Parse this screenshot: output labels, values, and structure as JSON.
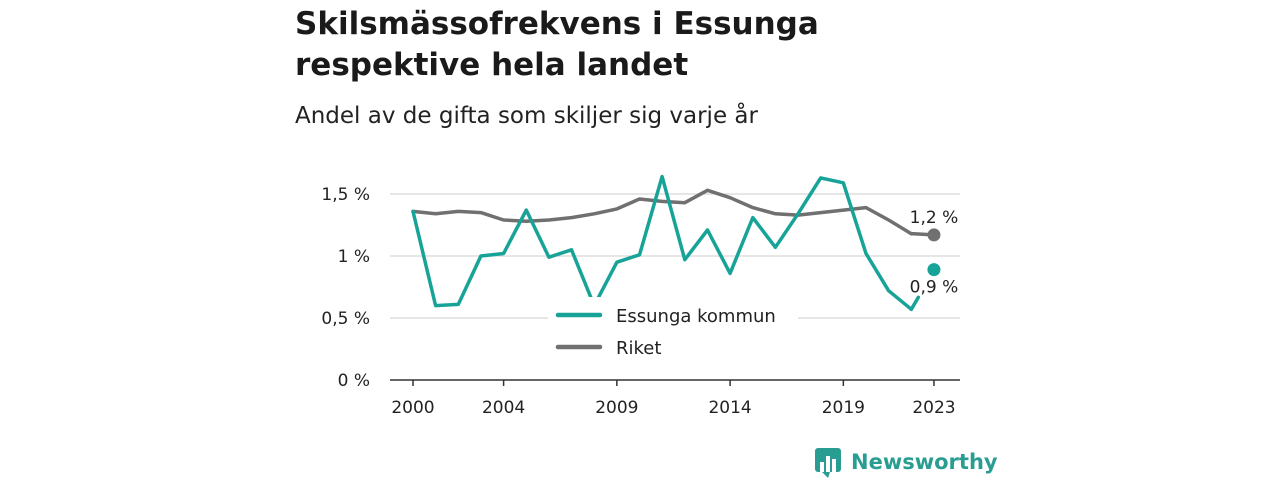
{
  "title": "Skilsmässofrekvens i Essunga respektive hela landet",
  "subtitle": "Andel av de gifta som skiljer sig varje år",
  "brand": "Newsworthy",
  "colors": {
    "essunga": "#17a398",
    "riket": "#707070",
    "grid": "#d6d6d6",
    "axis": "#333333"
  },
  "chart_data": {
    "type": "line",
    "ylim": [
      0,
      1.5
    ],
    "yticks": [
      {
        "value": 0,
        "label": "0 %"
      },
      {
        "value": 0.5,
        "label": "0,5 %"
      },
      {
        "value": 1,
        "label": "1 %"
      },
      {
        "value": 1.5,
        "label": "1,5 %"
      }
    ],
    "xticks": [
      2000,
      2004,
      2009,
      2014,
      2019,
      2023
    ],
    "x": [
      2000,
      2001,
      2002,
      2003,
      2004,
      2005,
      2006,
      2007,
      2008,
      2009,
      2010,
      2011,
      2012,
      2013,
      2014,
      2015,
      2016,
      2017,
      2018,
      2019,
      2020,
      2021,
      2022,
      2023
    ],
    "series": [
      {
        "name": "Essunga kommun",
        "values": [
          1.36,
          0.6,
          0.61,
          1.0,
          1.02,
          1.37,
          0.99,
          1.05,
          0.6,
          0.95,
          1.01,
          1.64,
          0.97,
          1.21,
          0.86,
          1.31,
          1.07,
          1.34,
          1.63,
          1.59,
          1.02,
          0.72,
          0.57,
          0.89
        ],
        "end_label": "0,9 %"
      },
      {
        "name": "Riket",
        "values": [
          1.36,
          1.34,
          1.36,
          1.35,
          1.29,
          1.28,
          1.29,
          1.31,
          1.34,
          1.38,
          1.46,
          1.44,
          1.43,
          1.53,
          1.47,
          1.39,
          1.34,
          1.33,
          1.35,
          1.37,
          1.39,
          1.29,
          1.18,
          1.17
        ],
        "end_label": "1,2 %"
      }
    ],
    "legend": [
      "Essunga kommun",
      "Riket"
    ],
    "grid": true
  }
}
